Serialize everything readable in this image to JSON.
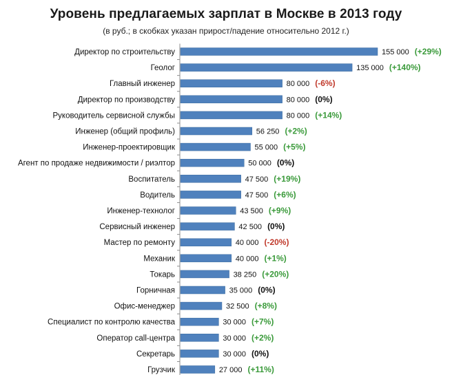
{
  "chart_data": {
    "type": "bar",
    "orientation": "horizontal",
    "title": "Уровень предлагаемых зарплат в Москве  в 2013 году",
    "subtitle": "(в руб.; в скобках указан прирост/падение относительно 2012 г.)",
    "categories": [
      "Директор по строительству",
      "Геолог",
      "Главный инженер",
      "Директор по производству",
      "Руководитель сервисной службы",
      "Инженер (общий профиль)",
      "Инженер-проектировщик",
      "Агент по продаже недвижимости / риэлтор",
      "Воспитатель",
      "Водитель",
      "Инженер-технолог",
      "Сервисный инженер",
      "Мастер по ремонту",
      "Механик",
      "Токарь",
      "Горничная",
      "Офис-менеджер",
      "Специалист по контролю качества",
      "Оператор call-центра",
      "Секретарь",
      "Грузчик"
    ],
    "values": [
      155000,
      135000,
      80000,
      80000,
      80000,
      56250,
      55000,
      50000,
      47500,
      47500,
      43500,
      42500,
      40000,
      40000,
      38250,
      35000,
      32500,
      30000,
      30000,
      30000,
      27000
    ],
    "value_labels": [
      "155 000",
      "135 000",
      "80 000",
      "80 000",
      "80 000",
      "56 250",
      "55 000",
      "50 000",
      "47 500",
      "47 500",
      "43 500",
      "42 500",
      "40 000",
      "40 000",
      "38 250",
      "35 000",
      "32 500",
      "30 000",
      "30 000",
      "30 000",
      "27 000"
    ],
    "changes": [
      "(+29%)",
      "(+140%)",
      "(-6%)",
      "(0%)",
      "(+14%)",
      "(+2%)",
      "(+5%)",
      "(0%)",
      "(+19%)",
      "(+6%)",
      "(+9%)",
      "(0%)",
      "(-20%)",
      "(+1%)",
      "(+20%)",
      "(0%)",
      "(+8%)",
      "(+7%)",
      "(+2%)",
      "(0%)",
      "(+11%)"
    ],
    "xlim": [
      0,
      155000
    ],
    "grid": false,
    "legend": "none"
  },
  "colors": {
    "bar": "#4f81bd",
    "bar_stroke": "#3a6a9e",
    "axis": "#8c8c8c",
    "positive": "#3a9a3a",
    "negative": "#c0392b",
    "neutral": "#111111"
  }
}
